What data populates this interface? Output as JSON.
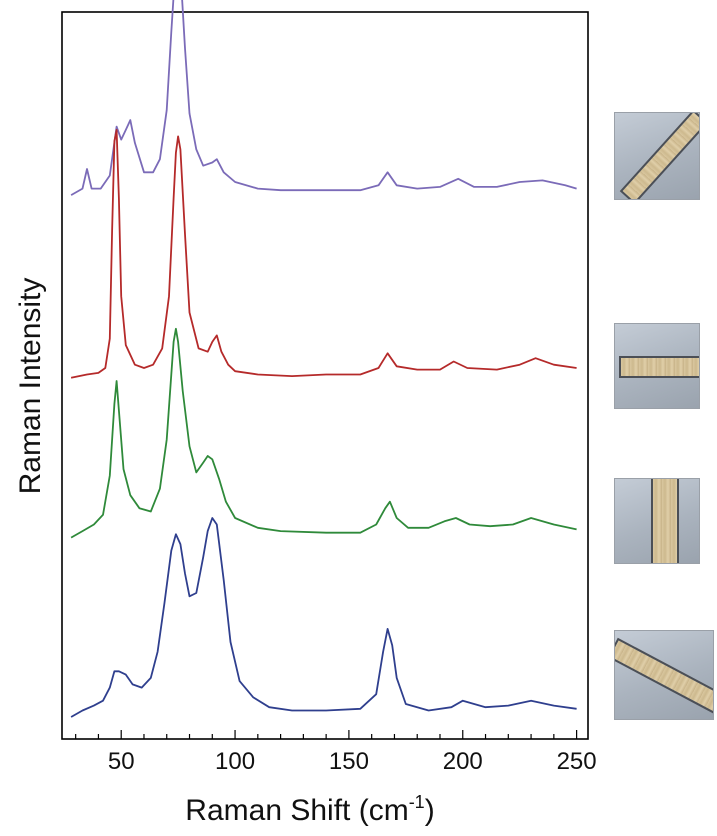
{
  "chart_data": {
    "type": "line",
    "xlabel_main": "Raman Shift (cm",
    "xlabel_sup": "-1",
    "xlabel_close": ")",
    "ylabel": "Raman Intensity",
    "xlim": [
      24,
      255
    ],
    "ylim": [
      0,
      4.2
    ],
    "y_ticks_shown": false,
    "grid": false,
    "legend": "none",
    "x_tick_labels": [
      {
        "value": 50,
        "label": "50"
      },
      {
        "value": 100,
        "label": "100"
      },
      {
        "value": 150,
        "label": "150"
      },
      {
        "value": 200,
        "label": "200"
      },
      {
        "value": 250,
        "label": "250"
      }
    ],
    "x_minor_tick_step": 10,
    "series": [
      {
        "color": "#7b6bb8",
        "baseline": 3.2,
        "points": [
          [
            28,
            0.0
          ],
          [
            33,
            0.04
          ],
          [
            35,
            0.16
          ],
          [
            37,
            0.04
          ],
          [
            41,
            0.04
          ],
          [
            45,
            0.12
          ],
          [
            48,
            0.42
          ],
          [
            50,
            0.34
          ],
          [
            52,
            0.4
          ],
          [
            54,
            0.46
          ],
          [
            56,
            0.32
          ],
          [
            60,
            0.14
          ],
          [
            64,
            0.14
          ],
          [
            67,
            0.22
          ],
          [
            70,
            0.52
          ],
          [
            72,
            1.0
          ],
          [
            74,
            1.44
          ],
          [
            75,
            1.54
          ],
          [
            76,
            1.38
          ],
          [
            78,
            0.9
          ],
          [
            80,
            0.5
          ],
          [
            83,
            0.28
          ],
          [
            86,
            0.18
          ],
          [
            90,
            0.2
          ],
          [
            92,
            0.22
          ],
          [
            95,
            0.14
          ],
          [
            100,
            0.08
          ],
          [
            110,
            0.04
          ],
          [
            120,
            0.03
          ],
          [
            140,
            0.03
          ],
          [
            155,
            0.03
          ],
          [
            163,
            0.06
          ],
          [
            167,
            0.14
          ],
          [
            171,
            0.06
          ],
          [
            180,
            0.04
          ],
          [
            190,
            0.05
          ],
          [
            198,
            0.1
          ],
          [
            205,
            0.05
          ],
          [
            215,
            0.05
          ],
          [
            225,
            0.08
          ],
          [
            235,
            0.09
          ],
          [
            245,
            0.06
          ],
          [
            250,
            0.04
          ]
        ]
      },
      {
        "color": "#b52a2a",
        "baseline": 2.08,
        "points": [
          [
            28,
            0.0
          ],
          [
            35,
            0.02
          ],
          [
            40,
            0.03
          ],
          [
            43,
            0.06
          ],
          [
            45,
            0.24
          ],
          [
            46,
            0.9
          ],
          [
            47,
            1.45
          ],
          [
            48,
            1.52
          ],
          [
            49,
            1.1
          ],
          [
            50,
            0.5
          ],
          [
            52,
            0.2
          ],
          [
            56,
            0.08
          ],
          [
            60,
            0.06
          ],
          [
            64,
            0.08
          ],
          [
            68,
            0.18
          ],
          [
            71,
            0.5
          ],
          [
            73,
            1.1
          ],
          [
            74,
            1.38
          ],
          [
            75,
            1.48
          ],
          [
            76,
            1.4
          ],
          [
            78,
            0.88
          ],
          [
            80,
            0.4
          ],
          [
            84,
            0.18
          ],
          [
            88,
            0.16
          ],
          [
            90,
            0.22
          ],
          [
            92,
            0.26
          ],
          [
            94,
            0.16
          ],
          [
            97,
            0.08
          ],
          [
            100,
            0.04
          ],
          [
            110,
            0.02
          ],
          [
            125,
            0.01
          ],
          [
            140,
            0.02
          ],
          [
            155,
            0.02
          ],
          [
            163,
            0.06
          ],
          [
            167,
            0.15
          ],
          [
            171,
            0.07
          ],
          [
            180,
            0.05
          ],
          [
            190,
            0.05
          ],
          [
            196,
            0.1
          ],
          [
            202,
            0.06
          ],
          [
            215,
            0.05
          ],
          [
            225,
            0.08
          ],
          [
            232,
            0.12
          ],
          [
            240,
            0.08
          ],
          [
            250,
            0.06
          ]
        ]
      },
      {
        "color": "#2f8a3a",
        "baseline": 1.1,
        "points": [
          [
            28,
            0.0
          ],
          [
            33,
            0.04
          ],
          [
            38,
            0.08
          ],
          [
            42,
            0.14
          ],
          [
            45,
            0.38
          ],
          [
            47,
            0.82
          ],
          [
            48,
            0.96
          ],
          [
            49,
            0.78
          ],
          [
            51,
            0.42
          ],
          [
            54,
            0.26
          ],
          [
            58,
            0.18
          ],
          [
            63,
            0.16
          ],
          [
            67,
            0.3
          ],
          [
            70,
            0.6
          ],
          [
            72,
            1.0
          ],
          [
            73,
            1.2
          ],
          [
            74,
            1.28
          ],
          [
            75,
            1.2
          ],
          [
            77,
            0.9
          ],
          [
            80,
            0.56
          ],
          [
            83,
            0.4
          ],
          [
            86,
            0.46
          ],
          [
            88,
            0.5
          ],
          [
            90,
            0.48
          ],
          [
            93,
            0.36
          ],
          [
            96,
            0.22
          ],
          [
            100,
            0.12
          ],
          [
            110,
            0.06
          ],
          [
            120,
            0.04
          ],
          [
            140,
            0.03
          ],
          [
            155,
            0.03
          ],
          [
            162,
            0.08
          ],
          [
            166,
            0.18
          ],
          [
            168,
            0.22
          ],
          [
            171,
            0.12
          ],
          [
            176,
            0.06
          ],
          [
            185,
            0.06
          ],
          [
            192,
            0.1
          ],
          [
            197,
            0.12
          ],
          [
            203,
            0.08
          ],
          [
            212,
            0.07
          ],
          [
            222,
            0.08
          ],
          [
            230,
            0.12
          ],
          [
            240,
            0.08
          ],
          [
            250,
            0.05
          ]
        ]
      },
      {
        "color": "#2f3f8e",
        "baseline": 0.0,
        "points": [
          [
            28,
            0.0
          ],
          [
            33,
            0.04
          ],
          [
            38,
            0.07
          ],
          [
            42,
            0.1
          ],
          [
            45,
            0.18
          ],
          [
            47,
            0.28
          ],
          [
            49,
            0.28
          ],
          [
            52,
            0.26
          ],
          [
            55,
            0.2
          ],
          [
            59,
            0.18
          ],
          [
            63,
            0.24
          ],
          [
            66,
            0.4
          ],
          [
            69,
            0.7
          ],
          [
            72,
            1.02
          ],
          [
            74,
            1.12
          ],
          [
            76,
            1.06
          ],
          [
            78,
            0.88
          ],
          [
            80,
            0.74
          ],
          [
            83,
            0.76
          ],
          [
            86,
            0.98
          ],
          [
            88,
            1.14
          ],
          [
            90,
            1.22
          ],
          [
            92,
            1.18
          ],
          [
            95,
            0.84
          ],
          [
            98,
            0.46
          ],
          [
            102,
            0.22
          ],
          [
            108,
            0.12
          ],
          [
            115,
            0.06
          ],
          [
            125,
            0.04
          ],
          [
            140,
            0.04
          ],
          [
            155,
            0.05
          ],
          [
            162,
            0.14
          ],
          [
            165,
            0.4
          ],
          [
            167,
            0.54
          ],
          [
            169,
            0.44
          ],
          [
            171,
            0.24
          ],
          [
            175,
            0.08
          ],
          [
            185,
            0.04
          ],
          [
            195,
            0.06
          ],
          [
            200,
            0.1
          ],
          [
            210,
            0.06
          ],
          [
            220,
            0.07
          ],
          [
            230,
            0.1
          ],
          [
            240,
            0.07
          ],
          [
            250,
            0.05
          ]
        ]
      }
    ]
  },
  "photos": [
    {
      "photo_id": "sample-photo-top"
    },
    {
      "photo_id": "sample-photo-second"
    },
    {
      "photo_id": "sample-photo-third"
    },
    {
      "photo_id": "sample-photo-bottom"
    }
  ]
}
